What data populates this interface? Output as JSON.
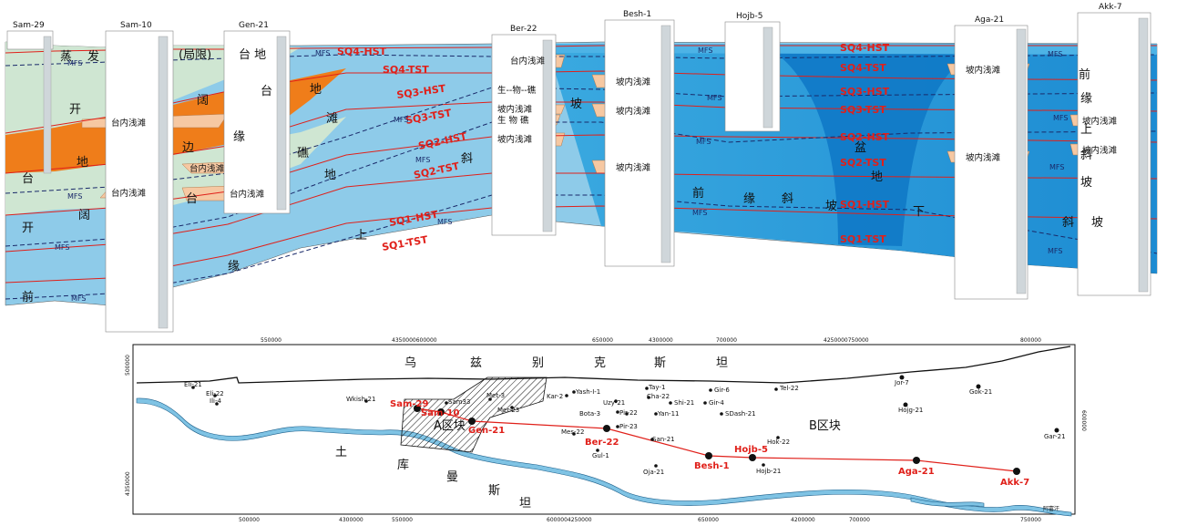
{
  "cross_section": {
    "wells": [
      "Sam-29",
      "Sam-10",
      "Gen-21",
      "Ber-22",
      "Besh-1",
      "Hojb-5",
      "Aga-21",
      "Akk-7"
    ],
    "sequences": [
      "SQ4-HST",
      "SQ4-TST",
      "SQ3-HST",
      "SQ3-TST",
      "SQ2-HST",
      "SQ2-TST",
      "SQ1-HST",
      "SQ1-TST"
    ],
    "mfs_label": "MFS",
    "facies_large": {
      "zheng": "蒸",
      "fa": "发",
      "ju_xian": "(局限)",
      "tai_di": "台 地",
      "kai1": "开",
      "tai1": "台",
      "di1": "地",
      "kuo1": "阔",
      "kai2": "开",
      "qian1": "前",
      "kuo2": "阔",
      "tai2": "台",
      "bian": "边",
      "yuan1": "缘",
      "jiao": "礁",
      "tan": "滩",
      "di2": "地",
      "tai3": "台",
      "di3": "地",
      "shang1": "上",
      "yuan2": "缘",
      "xie1": "斜",
      "po1": "坡",
      "qian2": "前",
      "yuan3": "缘",
      "xie2": "斜",
      "po2": "坡",
      "pen": "盆",
      "di4": "地",
      "xia": "下",
      "qian3": "前",
      "yuan4": "缘",
      "shang2": "上",
      "xie3": "斜",
      "po3": "坡",
      "xie4": "斜",
      "po4": "坡"
    },
    "facies_small": {
      "tnqt": "台内浅滩",
      "pnqt": "坡内浅滩",
      "sheng_wu_jiao": "生--物--礁",
      "sheng_wu_jiao2": "生 物 礁"
    }
  },
  "map": {
    "axis_top": [
      "550000",
      "4350000600000",
      "650000",
      "4300000",
      "700000",
      "4250000750000",
      "800000"
    ],
    "axis_bottom": [
      "500000",
      "4300000",
      "550000",
      "6000004250000",
      "650000",
      "4200000",
      "700000",
      "750000"
    ],
    "axis_left": [
      "500000",
      "4350000"
    ],
    "axis_right": [
      "600000"
    ],
    "regions": {
      "north1": "乌",
      "north2": "兹",
      "north3": "别",
      "north4": "克",
      "north5": "斯",
      "north6": "坦",
      "south1": "土",
      "south2": "库",
      "south3": "曼",
      "south4": "斯",
      "south5": "坦",
      "block_a": "A区块",
      "block_b": "B区块",
      "river": "阿富汗"
    },
    "wells": [
      "Eli-21",
      "Eli-22",
      "Ili-4",
      "Wkish-21",
      "Sam33",
      "Met-3",
      "Mer-23",
      "Kar-2",
      "Yash-Ⅰ-1",
      "Tay-1",
      "Uzy-21",
      "Cha-22",
      "Shi-21",
      "Gir-6",
      "Gir-4",
      "Bota-3",
      "Pir-22",
      "Yan-11",
      "SDash-21",
      "Tel-22",
      "Pir-23",
      "Mes-22",
      "San-21",
      "Gul-1",
      "Oja-21",
      "Hok-22",
      "Hojb-21",
      "Jor-7",
      "Hojg-21",
      "Gok-21",
      "Gar-21"
    ],
    "section_wells": [
      "Sam-29",
      "Sam-10",
      "Gen-21",
      "Ber-22",
      "Besh-1",
      "Hojb-5",
      "Aga-21",
      "Akk-7"
    ]
  },
  "colors": {
    "light_blue": "#8ecbe9",
    "mid_blue": "#2aa0de",
    "deep_blue": "#0f79c6",
    "orange": "#ef7d1a",
    "pale_green": "#cfe6d2",
    "facies_pink": "#f6c8a2",
    "red": "#e0201a",
    "navy": "#1a2a6a"
  }
}
